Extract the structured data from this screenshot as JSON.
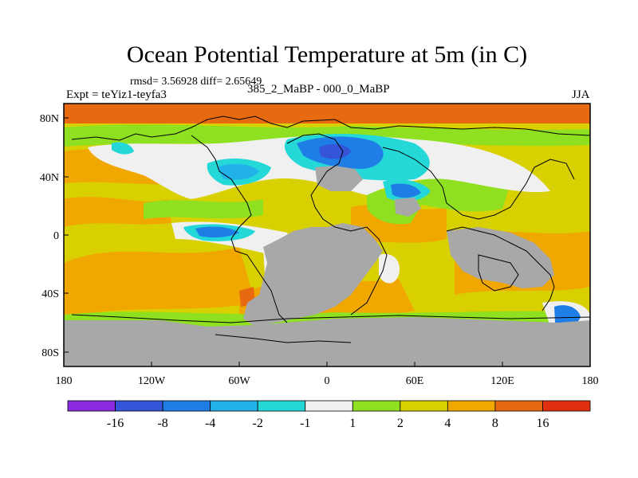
{
  "chart_data": {
    "type": "heatmap",
    "title": "Ocean Potential Temperature at 5m (in C)",
    "subtitle_stats": "rmsd= 3.56928 diff= 2.65649",
    "expt_label": "Expt = teYiz1-teyfa3",
    "period_label": "385_2_MaBP - 000_0_MaBP",
    "season": "JJA",
    "x_ticks": [
      "180",
      "120W",
      "60W",
      "0",
      "60E",
      "120E",
      "180"
    ],
    "y_ticks": [
      "80N",
      "40N",
      "0",
      "40S",
      "80S"
    ],
    "xlim": [
      -180,
      180
    ],
    "ylim": [
      -90,
      90
    ],
    "colorbar": {
      "labels": [
        "-16",
        "-8",
        "-4",
        "-2",
        "-1",
        "1",
        "2",
        "4",
        "8",
        "16"
      ],
      "colors": [
        "#8a2be2",
        "#3654d8",
        "#1e7ee6",
        "#20b2e8",
        "#24d8d8",
        "#f0f0f0",
        "#8ee020",
        "#d8d000",
        "#f0a800",
        "#e86a10",
        "#e03010"
      ]
    },
    "land_color": "#a8a8a8"
  }
}
